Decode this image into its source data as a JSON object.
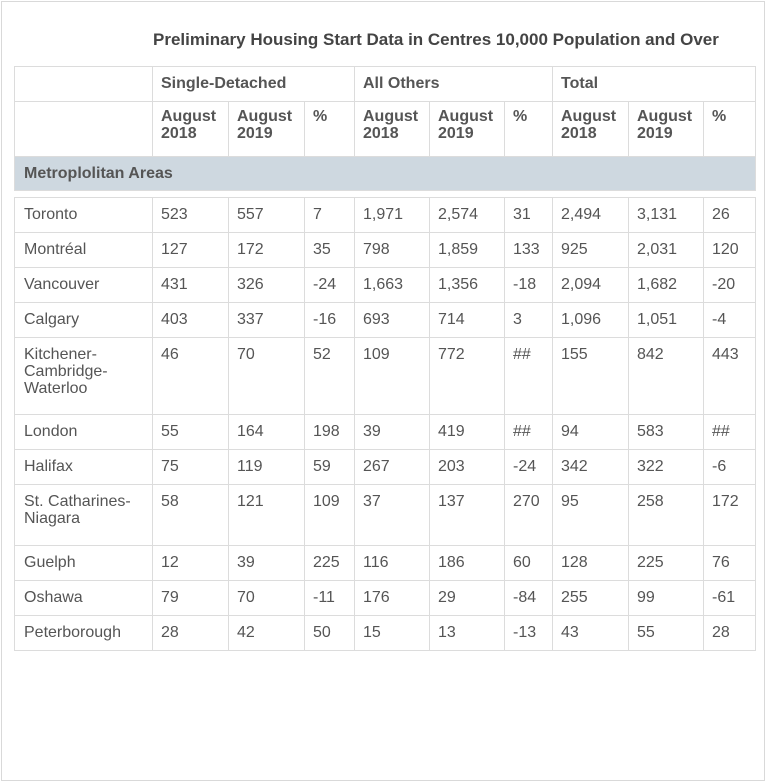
{
  "title": "Preliminary Housing Start Data in Centres 10,000 Population and Over",
  "groups": [
    "Single-Detached",
    "All Others",
    "Total"
  ],
  "subheaders": [
    [
      "August",
      "2018"
    ],
    [
      "August",
      "2019"
    ],
    [
      "%"
    ],
    [
      "August",
      "2018"
    ],
    [
      "August",
      "2019"
    ],
    [
      "%"
    ],
    [
      "August",
      "2018"
    ],
    [
      "August",
      "2019"
    ],
    [
      "%"
    ]
  ],
  "section_label": "Metroplolitan Areas",
  "rows": [
    {
      "city": [
        "Toronto"
      ],
      "values": [
        "523",
        "557",
        "7",
        "1,971",
        "2,574",
        "31",
        "2,494",
        "3,131",
        "26"
      ]
    },
    {
      "city": [
        "Montréal"
      ],
      "values": [
        "127",
        "172",
        "35",
        "798",
        "1,859",
        "133",
        "925",
        "2,031",
        "120"
      ]
    },
    {
      "city": [
        "Vancouver"
      ],
      "values": [
        "431",
        "326",
        "-24",
        "1,663",
        "1,356",
        "-18",
        "2,094",
        "1,682",
        "-20"
      ]
    },
    {
      "city": [
        "Calgary"
      ],
      "values": [
        "403",
        "337",
        "-16",
        "693",
        "714",
        "3",
        "1,096",
        "1,051",
        "-4"
      ]
    },
    {
      "city": [
        "Kitchener-",
        "Cambridge-",
        "Waterloo"
      ],
      "values": [
        "46",
        "70",
        "52",
        "109",
        "772",
        "##",
        "155",
        "842",
        "443"
      ]
    },
    {
      "city": [
        "London"
      ],
      "values": [
        "55",
        "164",
        "198",
        "39",
        "419",
        "##",
        "94",
        "583",
        "##"
      ]
    },
    {
      "city": [
        "Halifax"
      ],
      "values": [
        "75",
        "119",
        "59",
        "267",
        "203",
        "-24",
        "342",
        "322",
        "-6"
      ]
    },
    {
      "city": [
        "St. Catharines-",
        "Niagara"
      ],
      "values": [
        "58",
        "121",
        "109",
        "37",
        "137",
        "270",
        "95",
        "258",
        "172"
      ]
    },
    {
      "city": [
        "Guelph"
      ],
      "values": [
        "12",
        "39",
        "225",
        "116",
        "186",
        "60",
        "128",
        "225",
        "76"
      ]
    },
    {
      "city": [
        "Oshawa"
      ],
      "values": [
        "79",
        "70",
        "-11",
        "176",
        "29",
        "-84",
        "255",
        "99",
        "-61"
      ]
    },
    {
      "city": [
        "Peterborough"
      ],
      "values": [
        "28",
        "42",
        "50",
        "15",
        "13",
        "-13",
        "43",
        "55",
        "28"
      ]
    }
  ]
}
